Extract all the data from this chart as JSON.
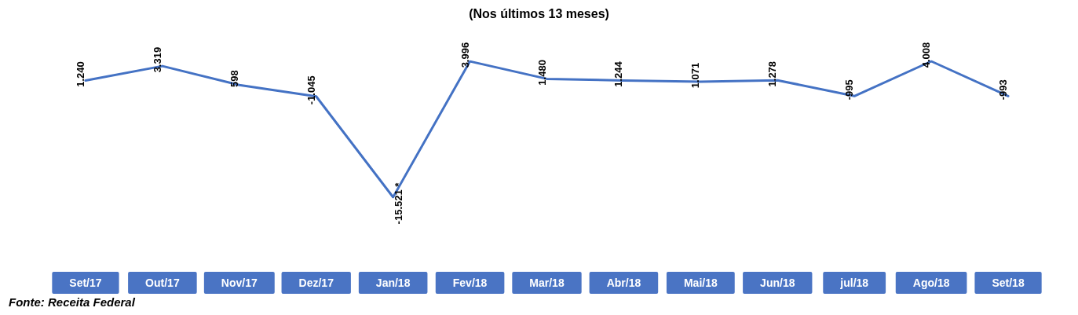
{
  "chart_data": {
    "type": "line",
    "subtitle": "(Nos últimos 13 meses)",
    "categories": [
      "Set/17",
      "Out/17",
      "Nov/17",
      "Dez/17",
      "Jan/18",
      "Fev/18",
      "Mar/18",
      "Abr/18",
      "Mai/18",
      "Jun/18",
      "jul/18",
      "Ago/18",
      "Set/18"
    ],
    "series": [
      {
        "color": "#4472c4",
        "values": [
          1240,
          3319,
          598,
          -1045,
          -15521,
          3996,
          1480,
          1244,
          1071,
          1278,
          -995,
          4008,
          -993
        ],
        "value_labels": [
          "1.240",
          "3.319",
          "598",
          "-1.045",
          "-15.521 *",
          "3.996",
          "1.480",
          "1.244",
          "1.071",
          "1.278",
          "-995",
          "4.008",
          "-993"
        ]
      }
    ],
    "marker": "none",
    "line_style": "solid",
    "annotations": [
      "Fonte: Receita Federal"
    ]
  }
}
